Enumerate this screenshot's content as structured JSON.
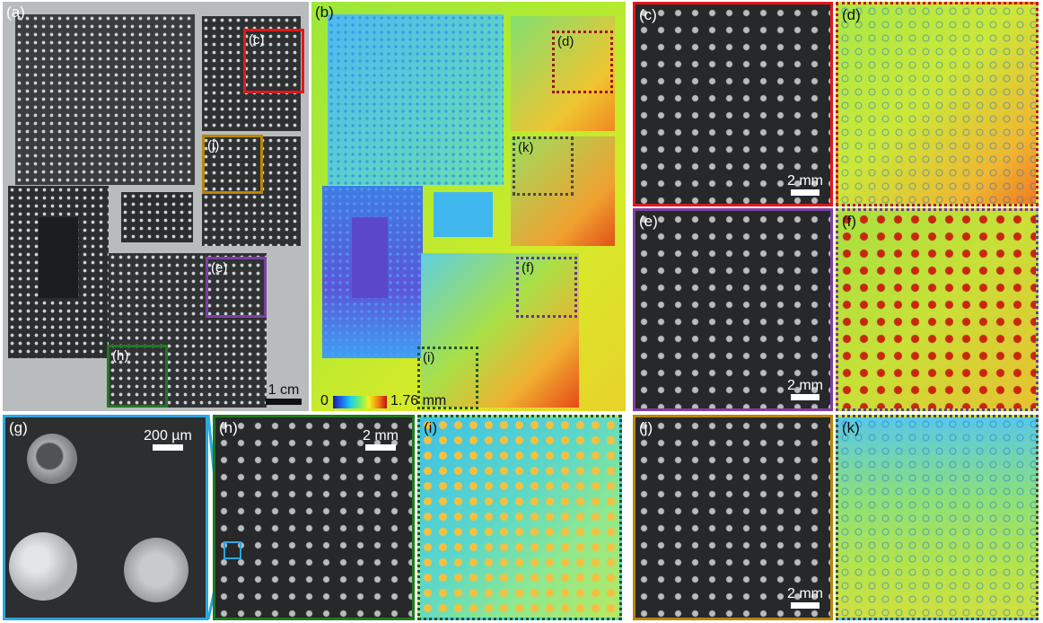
{
  "panels": {
    "a": {
      "label": "(a)",
      "scalebar": "1 cm"
    },
    "b": {
      "label": "(b)",
      "colorbar_min": "0",
      "colorbar_max": "1.76 mm"
    },
    "c": {
      "label": "(c)",
      "scalebar": "2 mm"
    },
    "d": {
      "label": "(d)"
    },
    "e": {
      "label": "(e)",
      "scalebar": "2 mm"
    },
    "f": {
      "label": "(f)"
    },
    "g": {
      "label": "(g)",
      "scalebar": "200 µm"
    },
    "h": {
      "label": "(h)",
      "scalebar": "2 mm"
    },
    "i": {
      "label": "(i)"
    },
    "j": {
      "label": "(j)",
      "scalebar": "2 mm"
    },
    "k": {
      "label": "(k)"
    }
  },
  "roi_labels": {
    "a_c": "(c)",
    "a_j": "(j)",
    "a_e": "(e)",
    "a_h": "(h)",
    "b_d": "(d)",
    "b_k": "(k)",
    "b_f": "(f)",
    "b_i": "(i)"
  },
  "colors": {
    "red": "#e4161b",
    "orange": "#b8860b",
    "purple": "#7e3fa3",
    "green": "#1f7a1f",
    "blue": "#2aa7e0"
  }
}
